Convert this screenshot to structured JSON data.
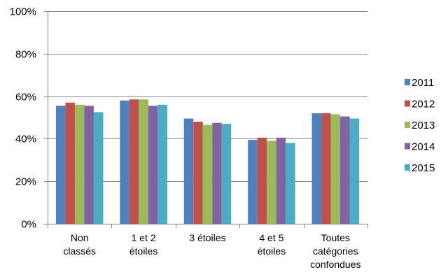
{
  "chart_data": {
    "type": "bar",
    "title": "",
    "xlabel": "",
    "ylabel": "",
    "ylim": [
      0,
      100
    ],
    "y_ticks": [
      "0%",
      "20%",
      "40%",
      "60%",
      "80%",
      "100%"
    ],
    "grid": "horizontal",
    "legend_position": "right",
    "categories": [
      [
        "Non",
        "classés"
      ],
      [
        "1 et 2",
        "étoiles"
      ],
      [
        "3 étoiles"
      ],
      [
        "4 et 5",
        "étoiles"
      ],
      [
        "Toutes",
        "catégories",
        "confondues"
      ]
    ],
    "series": [
      {
        "name": "2011",
        "color": "#4f81bd",
        "values": [
          55.5,
          58,
          49.5,
          39.5,
          52
        ]
      },
      {
        "name": "2012",
        "color": "#c0504d",
        "values": [
          57,
          58.5,
          48,
          40.5,
          52
        ]
      },
      {
        "name": "2013",
        "color": "#9bbb59",
        "values": [
          56,
          58.5,
          46.5,
          39,
          51.5
        ]
      },
      {
        "name": "2014",
        "color": "#8064a2",
        "values": [
          55.5,
          55.5,
          47.5,
          40.5,
          50.5
        ]
      },
      {
        "name": "2015",
        "color": "#4bacc6",
        "values": [
          52.5,
          56,
          47,
          38,
          49.5
        ]
      }
    ]
  }
}
